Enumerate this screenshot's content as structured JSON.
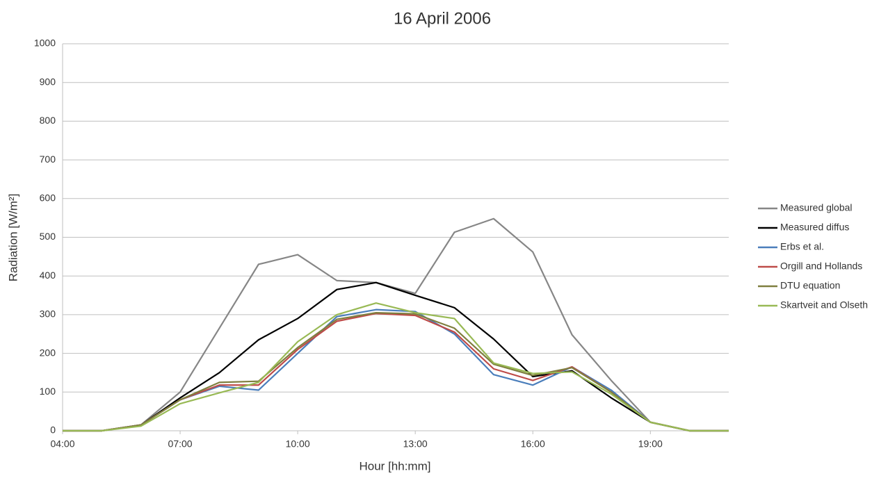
{
  "chart_data": {
    "type": "line",
    "title": "16 April 2006",
    "x_label": "Hour [hh:mm]",
    "y_label": "Radiation [W/m²]",
    "x": [
      4,
      5,
      6,
      7,
      8,
      9,
      10,
      11,
      12,
      13,
      14,
      15,
      16,
      17,
      18,
      19,
      20,
      21
    ],
    "xlim": [
      4,
      21
    ],
    "xticks": [
      {
        "value": 4,
        "label": "04:00"
      },
      {
        "value": 7,
        "label": "07:00"
      },
      {
        "value": 10,
        "label": "10:00"
      },
      {
        "value": 13,
        "label": "13:00"
      },
      {
        "value": 16,
        "label": "16:00"
      },
      {
        "value": 19,
        "label": "19:00"
      }
    ],
    "ylim": [
      0,
      1000
    ],
    "yticks": [
      0,
      100,
      200,
      300,
      400,
      500,
      600,
      700,
      800,
      900,
      1000
    ],
    "grid": true,
    "legend": "right",
    "series": [
      {
        "name": "Measured global",
        "color": "#868686",
        "values": [
          0,
          0,
          15,
          100,
          265,
          430,
          455,
          388,
          383,
          355,
          513,
          548,
          462,
          248,
          130,
          22,
          0,
          0
        ]
      },
      {
        "name": "Measured diffus",
        "color": "#000000",
        "values": [
          0,
          0,
          15,
          85,
          150,
          235,
          290,
          365,
          383,
          350,
          318,
          237,
          140,
          155,
          85,
          22,
          0,
          0
        ]
      },
      {
        "name": "Erbs et al.",
        "color": "#4a7ebb",
        "values": [
          0,
          0,
          15,
          80,
          115,
          105,
          200,
          295,
          313,
          308,
          250,
          145,
          118,
          165,
          105,
          22,
          0,
          0
        ]
      },
      {
        "name": "Orgill and Hollands",
        "color": "#be4b48",
        "values": [
          0,
          0,
          15,
          80,
          118,
          118,
          210,
          283,
          303,
          298,
          255,
          160,
          130,
          165,
          100,
          22,
          0,
          0
        ]
      },
      {
        "name": "DTU equation",
        "color": "#7f7f3f",
        "values": [
          0,
          0,
          15,
          80,
          125,
          128,
          215,
          288,
          305,
          302,
          265,
          172,
          143,
          163,
          100,
          22,
          0,
          0
        ]
      },
      {
        "name": "Skartveit and Olseth",
        "color": "#98b954",
        "values": [
          0,
          0,
          12,
          70,
          98,
          125,
          230,
          300,
          330,
          305,
          290,
          175,
          148,
          152,
          95,
          22,
          0,
          0
        ]
      }
    ]
  }
}
